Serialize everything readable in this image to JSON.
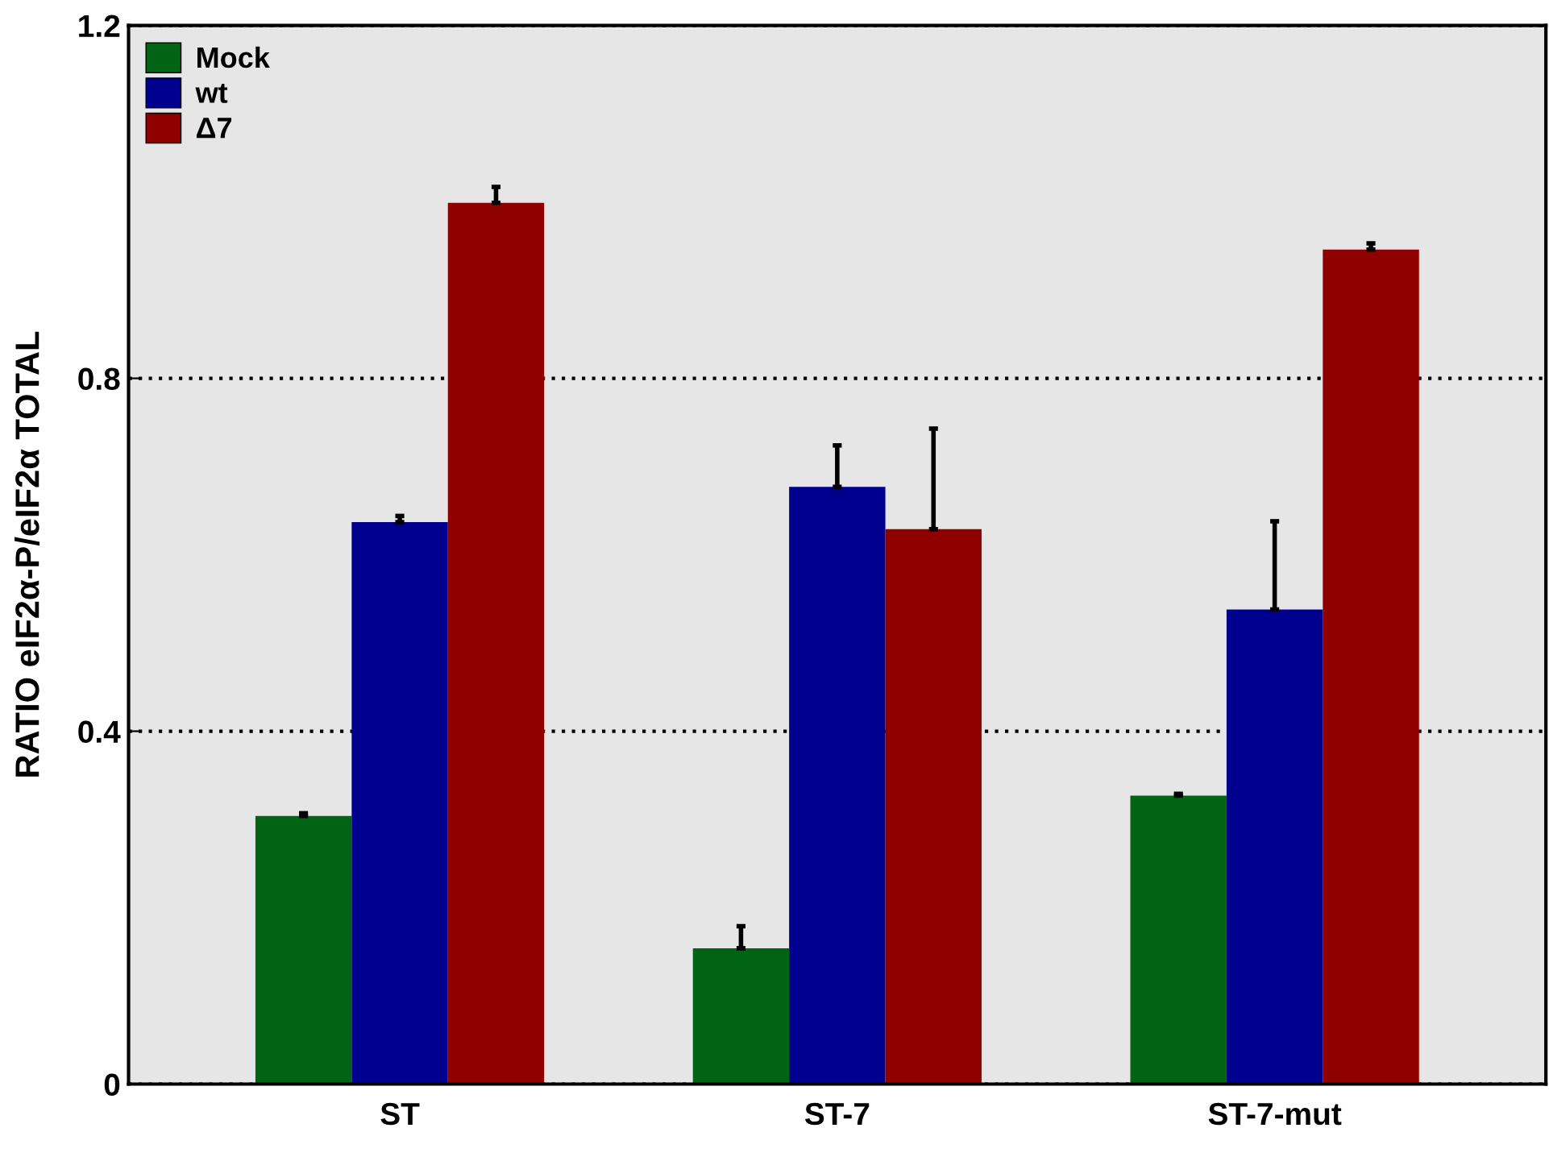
{
  "chart_data": {
    "type": "bar",
    "ylabel": "RATIO eIF2α-P/eIF2α TOTAL",
    "categories": [
      "ST",
      "ST-7",
      "ST-7-mut"
    ],
    "series": [
      {
        "name": "Mock",
        "color": "#006414",
        "values": [
          0.304,
          0.154,
          0.327
        ],
        "errors": [
          [
            0.304,
            0.307
          ],
          [
            0.154,
            0.179
          ],
          [
            0.327,
            0.329
          ]
        ]
      },
      {
        "name": "wt",
        "color": "#00008f",
        "values": [
          0.637,
          0.677,
          0.538
        ],
        "errors": [
          [
            0.637,
            0.644
          ],
          [
            0.677,
            0.724
          ],
          [
            0.538,
            0.638
          ]
        ]
      },
      {
        "name": "Δ7",
        "color": "#8f0000",
        "values": [
          0.999,
          0.629,
          0.946
        ],
        "errors": [
          [
            0.999,
            1.017
          ],
          [
            0.629,
            0.743
          ],
          [
            0.946,
            0.953
          ]
        ]
      }
    ],
    "ylim": [
      0,
      1.2
    ],
    "yticks": [
      0,
      0.4,
      0.8,
      1.2
    ],
    "grid": "y",
    "legend": "top left"
  }
}
